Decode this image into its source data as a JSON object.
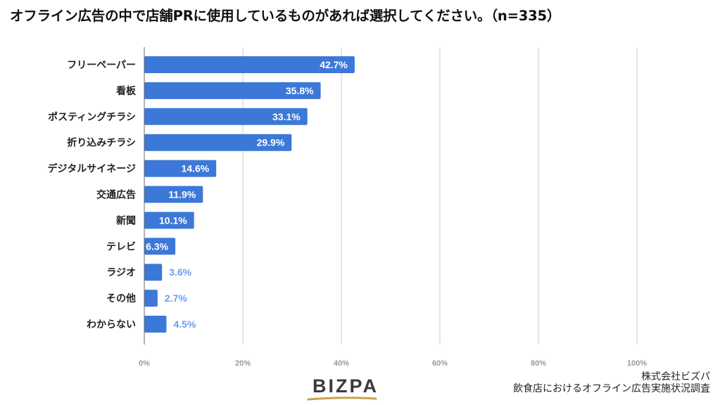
{
  "title": "オフライン広告の中で店舗PRに使用しているものがあれば選択してください。（n=335）",
  "chart_data": {
    "type": "bar",
    "orientation": "horizontal",
    "categories": [
      "フリーペーパー",
      "看板",
      "ポスティングチラシ",
      "折り込みチラシ",
      "デジタルサイネージ",
      "交通広告",
      "新聞",
      "テレビ",
      "ラジオ",
      "その他",
      "わからない"
    ],
    "values": [
      42.7,
      35.8,
      33.1,
      29.9,
      14.6,
      11.9,
      10.1,
      6.3,
      3.6,
      2.7,
      4.5
    ],
    "value_labels": [
      "42.7%",
      "35.8%",
      "33.1%",
      "29.9%",
      "14.6%",
      "11.9%",
      "10.1%",
      "6.3%",
      "3.6%",
      "2.7%",
      "4.5%"
    ],
    "xticks": [
      0,
      20,
      40,
      60,
      80,
      100
    ],
    "xtick_labels": [
      "0%",
      "20%",
      "40%",
      "60%",
      "80%",
      "100%"
    ],
    "xlim": [
      0,
      100
    ],
    "grid": true,
    "bar_color": "#3c78d8",
    "label_inside_color": "#ffffff",
    "label_outside_color": "#6d9eeb",
    "grid_color": "#cccccc",
    "tick_label_color": "#999999"
  },
  "footer": {
    "logo": "BIZPA",
    "company": "株式会社ビズパ",
    "survey": "飲食店におけるオフライン広告実施状況調査"
  }
}
